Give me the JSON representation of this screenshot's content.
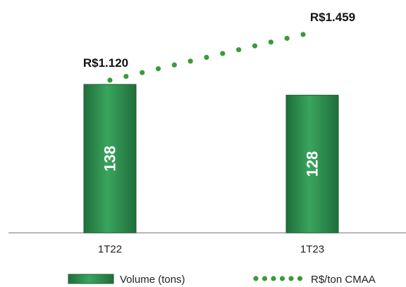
{
  "chart_data": {
    "type": "bar",
    "categories": [
      "1T22",
      "1T23"
    ],
    "series": [
      {
        "name": "Volume (tons)",
        "type": "bar",
        "values": [
          138,
          128
        ],
        "labels": [
          "138",
          "128"
        ],
        "color": "#2e8b4e"
      },
      {
        "name": "R$/ton CMAA",
        "type": "line",
        "style": "dotted",
        "values": [
          1120,
          1459
        ],
        "labels": [
          "R$1.120",
          "R$1.459"
        ],
        "color": "#3a9a3a"
      }
    ],
    "title": "",
    "xlabel": "",
    "ylabel": "",
    "grid": false,
    "legend": "bottom"
  }
}
